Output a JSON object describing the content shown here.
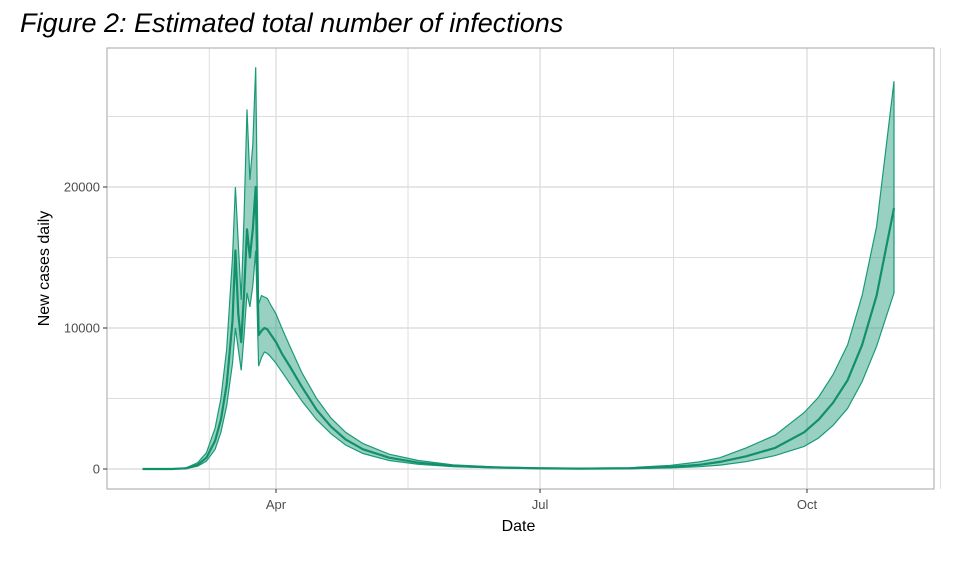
{
  "figure_title": "Figure 2: Estimated total number of infections",
  "colors": {
    "band": "#1a9a76",
    "line": "#12906b",
    "grid": "#dedede",
    "panel_border": "#b5b5b5"
  },
  "chart_data": {
    "type": "line",
    "title": "Figure 2: Estimated total number of infections",
    "xlabel": "Date",
    "ylabel": "New cases daily",
    "x_ticks": [
      "Apr",
      "Jul",
      "Oct"
    ],
    "y_ticks": [
      0,
      10000,
      20000
    ],
    "ylim": [
      -1500,
      29500
    ],
    "grid": true,
    "legend": "none",
    "series": [
      {
        "x": [
          "2020-02-15",
          "2020-02-25",
          "2020-03-01",
          "2020-03-05",
          "2020-03-08",
          "2020-03-11",
          "2020-03-13",
          "2020-03-15",
          "2020-03-17",
          "2020-03-18",
          "2020-03-19",
          "2020-03-20",
          "2020-03-21",
          "2020-03-22",
          "2020-03-23",
          "2020-03-24",
          "2020-03-25",
          "2020-03-26",
          "2020-03-27",
          "2020-03-28",
          "2020-03-29",
          "2020-03-30",
          "2020-04-01",
          "2020-04-03",
          "2020-04-06",
          "2020-04-10",
          "2020-04-15",
          "2020-04-20",
          "2020-04-25",
          "2020-05-01",
          "2020-05-10",
          "2020-05-20",
          "2020-06-01",
          "2020-06-15",
          "2020-07-01",
          "2020-07-15",
          "2020-08-01",
          "2020-08-15",
          "2020-08-25",
          "2020-09-01",
          "2020-09-10",
          "2020-09-20",
          "2020-09-30",
          "2020-10-05",
          "2020-10-10",
          "2020-10-15",
          "2020-10-20",
          "2020-10-25",
          "2020-10-31"
        ],
        "y": [
          0,
          0,
          50,
          300,
          800,
          2000,
          3500,
          6000,
          10500,
          15500,
          11000,
          9000,
          12500,
          17000,
          15000,
          17000,
          20000,
          9500,
          9800,
          10000,
          9900,
          9600,
          9000,
          8200,
          7200,
          5800,
          4200,
          3000,
          2100,
          1400,
          800,
          450,
          220,
          110,
          50,
          30,
          50,
          150,
          300,
          500,
          900,
          1500,
          2600,
          3500,
          4700,
          6300,
          8800,
          12300,
          18500
        ],
        "lower": [
          0,
          0,
          30,
          200,
          550,
          1400,
          2600,
          4500,
          7500,
          10000,
          8500,
          7000,
          9500,
          12500,
          11500,
          13000,
          15500,
          7300,
          7900,
          8300,
          8200,
          8000,
          7500,
          6900,
          6000,
          4800,
          3500,
          2500,
          1700,
          1100,
          600,
          330,
          160,
          75,
          30,
          15,
          25,
          80,
          160,
          280,
          520,
          950,
          1600,
          2200,
          3100,
          4300,
          6200,
          8700,
          12500
        ],
        "upper": [
          0,
          0,
          80,
          450,
          1150,
          2900,
          5000,
          8500,
          15000,
          20000,
          16000,
          12000,
          18000,
          25500,
          20500,
          23000,
          28500,
          11700,
          12300,
          12200,
          12100,
          11700,
          11000,
          10000,
          8600,
          6800,
          5000,
          3600,
          2600,
          1800,
          1050,
          600,
          300,
          150,
          80,
          60,
          90,
          260,
          500,
          800,
          1500,
          2400,
          4000,
          5100,
          6700,
          8800,
          12300,
          17200,
          27500
        ]
      }
    ]
  }
}
